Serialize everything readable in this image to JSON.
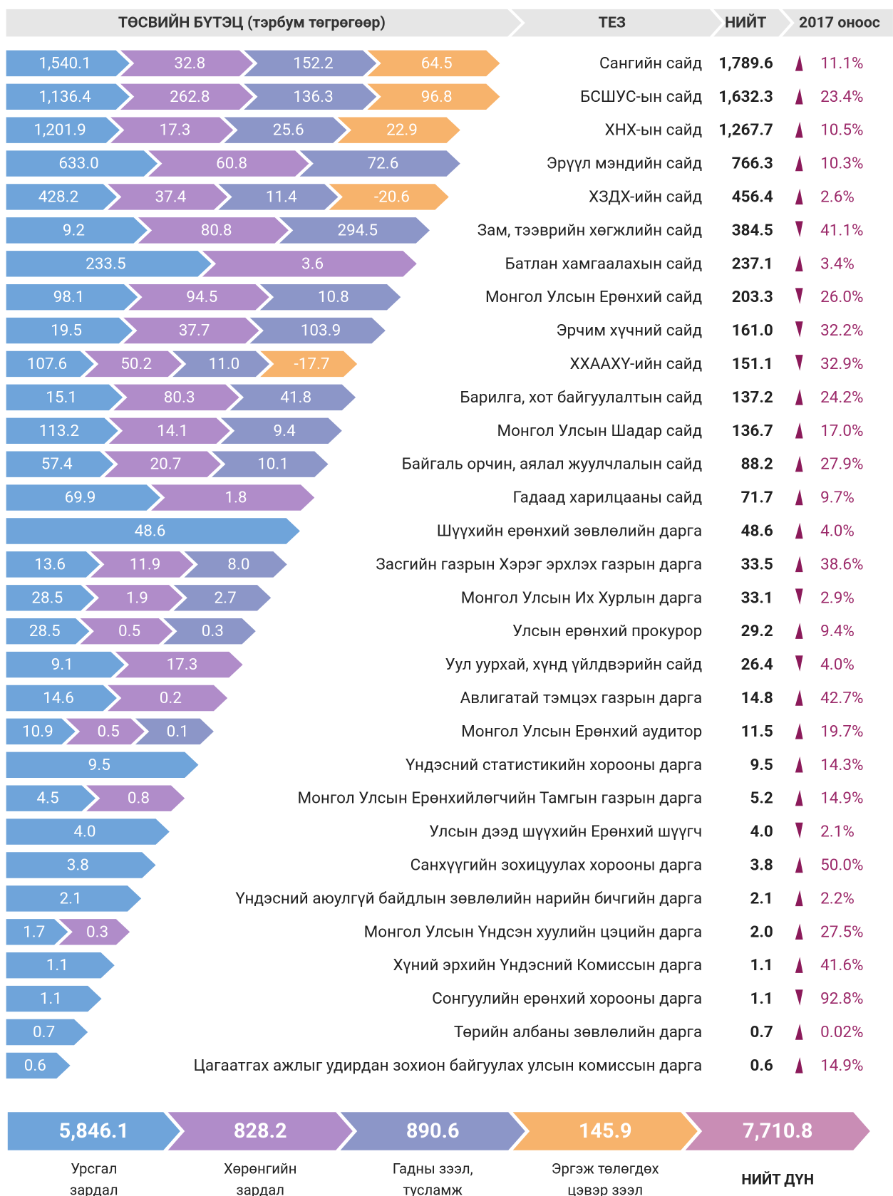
{
  "header": {
    "title": "ТӨСВИЙН БҮТЭЦ (тэрбум төгрөгөөр)",
    "col_name": "ТЕЗ",
    "col_total": "НИЙТ",
    "col_change": "2017 оноос"
  },
  "rows": [
    {
      "segments": [
        "1,540.1",
        "32.8",
        "152.2",
        "64.5"
      ],
      "name": "Сангийн сайд",
      "total": "1,789.6",
      "trend": "up",
      "change": "11.1%"
    },
    {
      "segments": [
        "1,136.4",
        "262.8",
        "136.3",
        "96.8"
      ],
      "name": "БСШУС-ын сайд",
      "total": "1,632.3",
      "trend": "up",
      "change": "23.4%"
    },
    {
      "segments": [
        "1,201.9",
        "17.3",
        "25.6",
        "22.9"
      ],
      "name": "ХНХ-ын сайд",
      "total": "1,267.7",
      "trend": "up",
      "change": "10.5%"
    },
    {
      "segments": [
        "633.0",
        "60.8",
        "72.6"
      ],
      "name": "Эрүүл мэндийн сайд",
      "total": "766.3",
      "trend": "up",
      "change": "10.3%"
    },
    {
      "segments": [
        "428.2",
        "37.4",
        "11.4",
        "-20.6"
      ],
      "name": "ХЗДХ-ийн сайд",
      "total": "456.4",
      "trend": "up",
      "change": "2.6%"
    },
    {
      "segments": [
        "9.2",
        "80.8",
        "294.5"
      ],
      "name": "Зам, тээврийн хөгжлийн сайд",
      "total": "384.5",
      "trend": "down",
      "change": "41.1%"
    },
    {
      "segments": [
        "233.5",
        "3.6"
      ],
      "name": "Батлан хамгаалахын сайд",
      "total": "237.1",
      "trend": "up",
      "change": "3.4%"
    },
    {
      "segments": [
        "98.1",
        "94.5",
        "10.8"
      ],
      "name": "Монгол Улсын Ерөнхий сайд",
      "total": "203.3",
      "trend": "down",
      "change": "26.0%"
    },
    {
      "segments": [
        "19.5",
        "37.7",
        "103.9"
      ],
      "name": "Эрчим хүчний сайд",
      "total": "161.0",
      "trend": "down",
      "change": "32.2%"
    },
    {
      "segments": [
        "107.6",
        "50.2",
        "11.0",
        "-17.7"
      ],
      "name": "ХХААХҮ-ийн сайд",
      "total": "151.1",
      "trend": "down",
      "change": "32.9%"
    },
    {
      "segments": [
        "15.1",
        "80.3",
        "41.8"
      ],
      "name": "Барилга, хот байгуулалтын сайд",
      "total": "137.2",
      "trend": "up",
      "change": "24.2%"
    },
    {
      "segments": [
        "113.2",
        "14.1",
        "9.4"
      ],
      "name": "Монгол Улсын Шадар сайд",
      "total": "136.7",
      "trend": "up",
      "change": "17.0%"
    },
    {
      "segments": [
        "57.4",
        "20.7",
        "10.1"
      ],
      "name": "Байгаль орчин, аялал жуулчлалын сайд",
      "total": "88.2",
      "trend": "up",
      "change": "27.9%"
    },
    {
      "segments": [
        "69.9",
        "1.8"
      ],
      "name": "Гадаад харилцааны сайд",
      "total": "71.7",
      "trend": "up",
      "change": "9.7%"
    },
    {
      "segments": [
        "48.6"
      ],
      "name": "Шүүхийн ерөнхий зөвлөлийн дарга",
      "total": "48.6",
      "trend": "up",
      "change": "4.0%"
    },
    {
      "segments": [
        "13.6",
        "11.9",
        "8.0"
      ],
      "name": "Засгийн газрын Хэрэг эрхлэх газрын дарга",
      "total": "33.5",
      "trend": "up",
      "change": "38.6%"
    },
    {
      "segments": [
        "28.5",
        "1.9",
        "2.7"
      ],
      "name": "Монгол Улсын Их Хурлын дарга",
      "total": "33.1",
      "trend": "down",
      "change": "2.9%"
    },
    {
      "segments": [
        "28.5",
        "0.5",
        "0.3"
      ],
      "name": "Улсын ерөнхий прокурор",
      "total": "29.2",
      "trend": "up",
      "change": "9.4%"
    },
    {
      "segments": [
        "9.1",
        "17.3"
      ],
      "name": "Уул уурхай, хүнд үйлдвэрийн сайд",
      "total": "26.4",
      "trend": "down",
      "change": "4.0%"
    },
    {
      "segments": [
        "14.6",
        "0.2"
      ],
      "name": "Авлигатай тэмцэх газрын дарга",
      "total": "14.8",
      "trend": "up",
      "change": "42.7%"
    },
    {
      "segments": [
        "10.9",
        "0.5",
        "0.1"
      ],
      "name": "Монгол Улсын Ерөнхий аудитор",
      "total": "11.5",
      "trend": "up",
      "change": "19.7%"
    },
    {
      "segments": [
        "9.5"
      ],
      "name": "Үндэсний статистикийн хорооны дарга",
      "total": "9.5",
      "trend": "up",
      "change": "14.3%"
    },
    {
      "segments": [
        "4.5",
        "0.8"
      ],
      "name": "Монгол Улсын Ерөнхийлөгчийн Тамгын газрын дарга",
      "total": "5.2",
      "trend": "up",
      "change": "14.9%"
    },
    {
      "segments": [
        "4.0"
      ],
      "name": "Улсын дээд шүүхийн Ерөнхий шүүгч",
      "total": "4.0",
      "trend": "down",
      "change": "2.1%"
    },
    {
      "segments": [
        "3.8"
      ],
      "name": "Санхүүгийн зохицуулах хорооны дарга",
      "total": "3.8",
      "trend": "up",
      "change": "50.0%"
    },
    {
      "segments": [
        "2.1"
      ],
      "name": "Үндэсний аюулгүй байдлын зөвлөлийн нарийн бичгийн дарга",
      "total": "2.1",
      "trend": "up",
      "change": "2.2%"
    },
    {
      "segments": [
        "1.7",
        "0.3"
      ],
      "name": "Монгол Улсын Үндсэн хуулийн цэцийн дарга",
      "total": "2.0",
      "trend": "up",
      "change": "27.5%"
    },
    {
      "segments": [
        "1.1"
      ],
      "name": "Хүний эрхийн Үндэсний Комиссын дарга",
      "total": "1.1",
      "trend": "up",
      "change": "41.6%"
    },
    {
      "segments": [
        "1.1"
      ],
      "name": "Сонгуулийн ерөнхий хорооны дарга",
      "total": "1.1",
      "trend": "down",
      "change": "92.8%"
    },
    {
      "segments": [
        "0.7"
      ],
      "name": "Төрийн албаны зөвлөлийн дарга",
      "total": "0.7",
      "trend": "up",
      "change": "0.02%"
    },
    {
      "segments": [
        "0.6"
      ],
      "name": "Цагаатгах ажлыг удирдан зохион байгуулах улсын комиссын дарга",
      "total": "0.6",
      "trend": "up",
      "change": "14.9%"
    }
  ],
  "totals": [
    {
      "value": "5,846.1",
      "label": [
        "Урсгал",
        "зардал"
      ],
      "color": "#6fa4da"
    },
    {
      "value": "828.2",
      "label": [
        "Хөрөнгийн",
        "зардал"
      ],
      "color": "#b08cc9"
    },
    {
      "value": "890.6",
      "label": [
        "Гадны зээл,",
        "тусламж"
      ],
      "color": "#8c96c8"
    },
    {
      "value": "145.9",
      "label": [
        "Эргэж төлөгдөх",
        "цэвэр зээл"
      ],
      "color": "#f7b36c"
    },
    {
      "value": "7,710.8",
      "label": [
        "НИЙТ ДҮН"
      ],
      "color": "#c98db5"
    }
  ],
  "trend_color": "#8b1a5a"
}
